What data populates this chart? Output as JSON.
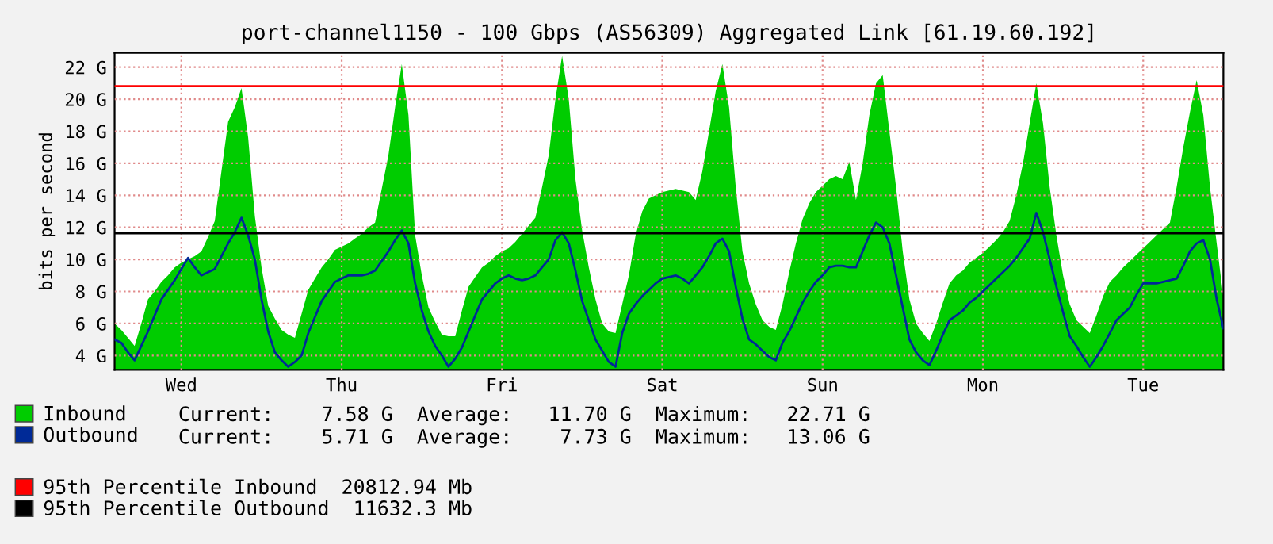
{
  "chart_data": {
    "type": "area",
    "title": "port-channel1150 - 100 Gbps (AS56309) Aggregated Link [61.19.60.192]",
    "ylabel": "bits per second",
    "categories": [
      null,
      null,
      null,
      null,
      null,
      null,
      null,
      null,
      null,
      null,
      "Wed",
      null,
      null,
      null,
      null,
      null,
      null,
      null,
      null,
      null,
      null,
      null,
      null,
      null,
      null,
      null,
      null,
      null,
      null,
      null,
      null,
      null,
      null,
      null,
      "Thu",
      null,
      null,
      null,
      null,
      null,
      null,
      null,
      null,
      null,
      null,
      null,
      null,
      null,
      null,
      null,
      null,
      null,
      null,
      null,
      null,
      null,
      null,
      null,
      "Fri",
      null,
      null,
      null,
      null,
      null,
      null,
      null,
      null,
      null,
      null,
      null,
      null,
      null,
      null,
      null,
      null,
      null,
      null,
      null,
      null,
      null,
      null,
      null,
      "Sat",
      null,
      null,
      null,
      null,
      null,
      null,
      null,
      null,
      null,
      null,
      null,
      null,
      null,
      null,
      null,
      null,
      null,
      null,
      null,
      null,
      null,
      null,
      null,
      "Sun",
      null,
      null,
      null,
      null,
      null,
      null,
      null,
      null,
      null,
      null,
      null,
      null,
      null,
      null,
      null,
      null,
      null,
      null,
      null,
      null,
      null,
      null,
      null,
      "Mon",
      null,
      null,
      null,
      null,
      null,
      null,
      null,
      null,
      null,
      null,
      null,
      null,
      null,
      null,
      null,
      null,
      null,
      null,
      null,
      null,
      null,
      null,
      null,
      "Tue",
      null,
      null,
      null,
      null,
      null,
      null,
      null,
      null,
      null,
      null,
      null,
      null
    ],
    "ylim": [
      3.1,
      22.9
    ],
    "yticks": [
      {
        "value": 4,
        "label": "4 G"
      },
      {
        "value": 6,
        "label": "6 G"
      },
      {
        "value": 8,
        "label": "8 G"
      },
      {
        "value": 10,
        "label": "10 G"
      },
      {
        "value": 12,
        "label": "12 G"
      },
      {
        "value": 14,
        "label": "14 G"
      },
      {
        "value": 16,
        "label": "16 G"
      },
      {
        "value": 18,
        "label": "18 G"
      },
      {
        "value": 20,
        "label": "20 G"
      },
      {
        "value": 22,
        "label": "22 G"
      }
    ],
    "grid": true,
    "legend": "bottom",
    "series": [
      {
        "name": "Inbound",
        "color": "#00cc00",
        "values": [
          6.0,
          5.6,
          5.1,
          4.6,
          6.0,
          7.5,
          8.0,
          8.6,
          9.0,
          9.5,
          9.8,
          10.0,
          10.2,
          10.5,
          11.4,
          12.4,
          15.5,
          18.6,
          19.5,
          20.7,
          17.6,
          12.7,
          9.5,
          7.1,
          6.3,
          5.6,
          5.3,
          5.1,
          6.6,
          8.1,
          8.8,
          9.5,
          10.0,
          10.6,
          10.8,
          11.0,
          11.3,
          11.6,
          12.0,
          12.3,
          14.4,
          16.5,
          19.5,
          22.2,
          19.0,
          11.5,
          9.0,
          7.0,
          6.1,
          5.3,
          5.2,
          5.2,
          6.8,
          8.3,
          8.9,
          9.5,
          9.8,
          10.2,
          10.5,
          10.7,
          11.1,
          11.6,
          12.1,
          12.6,
          14.5,
          16.5,
          20.0,
          22.7,
          20.0,
          15.0,
          11.8,
          9.5,
          7.5,
          6.0,
          5.5,
          5.4,
          7.2,
          9.0,
          11.5,
          13.0,
          13.8,
          14.0,
          14.2,
          14.3,
          14.4,
          14.3,
          14.2,
          13.7,
          15.5,
          18.0,
          20.5,
          22.2,
          19.5,
          14.5,
          10.5,
          8.5,
          7.2,
          6.2,
          5.8,
          5.6,
          7.2,
          9.2,
          11.0,
          12.5,
          13.5,
          14.2,
          14.6,
          15.0,
          15.2,
          15.0,
          16.1,
          13.7,
          16.0,
          19.0,
          21.0,
          21.5,
          18.0,
          14.5,
          10.5,
          7.5,
          6.0,
          5.4,
          4.9,
          6.0,
          7.3,
          8.5,
          9.0,
          9.3,
          9.8,
          10.1,
          10.4,
          10.8,
          11.2,
          11.7,
          12.4,
          14.0,
          16.0,
          18.5,
          21.0,
          18.5,
          14.5,
          11.5,
          9.0,
          7.2,
          6.2,
          5.8,
          5.4,
          6.5,
          7.7,
          8.6,
          9.0,
          9.5,
          9.9,
          10.3,
          10.7,
          11.1,
          11.5,
          11.9,
          12.3,
          14.5,
          17.0,
          19.2,
          21.2,
          19.0,
          14.5,
          11.0,
          7.6
        ]
      },
      {
        "name": "Outbound",
        "type": "line",
        "color": "#002a97",
        "values": [
          5.0,
          4.8,
          4.2,
          3.7,
          4.6,
          5.5,
          6.5,
          7.5,
          8.1,
          8.7,
          9.4,
          10.1,
          9.5,
          9.0,
          9.2,
          9.4,
          10.2,
          11.0,
          11.7,
          12.6,
          11.5,
          10.0,
          7.5,
          5.5,
          4.2,
          3.7,
          3.3,
          3.6,
          4.0,
          5.4,
          6.4,
          7.4,
          8.0,
          8.6,
          8.8,
          9.0,
          9.0,
          9.0,
          9.1,
          9.3,
          9.9,
          10.5,
          11.2,
          11.8,
          11.0,
          8.5,
          6.8,
          5.5,
          4.6,
          4.0,
          3.3,
          3.8,
          4.5,
          5.5,
          6.5,
          7.5,
          8.0,
          8.5,
          8.8,
          9.0,
          8.8,
          8.7,
          8.8,
          9.0,
          9.5,
          10.0,
          11.2,
          11.7,
          11.0,
          9.3,
          7.4,
          6.2,
          5.0,
          4.3,
          3.6,
          3.3,
          5.4,
          6.6,
          7.2,
          7.7,
          8.1,
          8.5,
          8.8,
          8.9,
          9.0,
          8.8,
          8.5,
          9.0,
          9.5,
          10.2,
          11.0,
          11.3,
          10.5,
          8.3,
          6.3,
          5.0,
          4.7,
          4.3,
          3.9,
          3.7,
          4.8,
          5.5,
          6.4,
          7.3,
          8.0,
          8.6,
          9.0,
          9.5,
          9.6,
          9.6,
          9.5,
          9.5,
          10.5,
          11.5,
          12.3,
          12.0,
          11.0,
          9.0,
          7.0,
          5.0,
          4.2,
          3.7,
          3.4,
          4.3,
          5.3,
          6.2,
          6.5,
          6.8,
          7.3,
          7.6,
          8.0,
          8.4,
          8.8,
          9.2,
          9.6,
          10.1,
          10.7,
          11.3,
          12.9,
          11.7,
          10.0,
          8.3,
          6.7,
          5.2,
          4.6,
          3.9,
          3.3,
          3.9,
          4.6,
          5.4,
          6.2,
          6.6,
          7.0,
          7.8,
          8.5,
          8.5,
          8.5,
          8.6,
          8.7,
          8.8,
          9.6,
          10.5,
          11.0,
          11.2,
          10.0,
          7.5,
          5.7
        ]
      }
    ],
    "ref_lines": [
      {
        "axis": "y",
        "value": 20.81294,
        "label": "95th Percentile Inbound  20812.94 Mb",
        "color": "#ff0000"
      },
      {
        "axis": "y",
        "value": 11.6323,
        "label": "95th Percentile Outbound  11632.3 Mb",
        "color": "#000000"
      }
    ],
    "annotations": [
      "Current:    7.58 G  Average:   11.70 G  Maximum:   22.71 G",
      "Current:    5.71 G  Average:    7.73 G  Maximum:   13.06 G"
    ]
  }
}
